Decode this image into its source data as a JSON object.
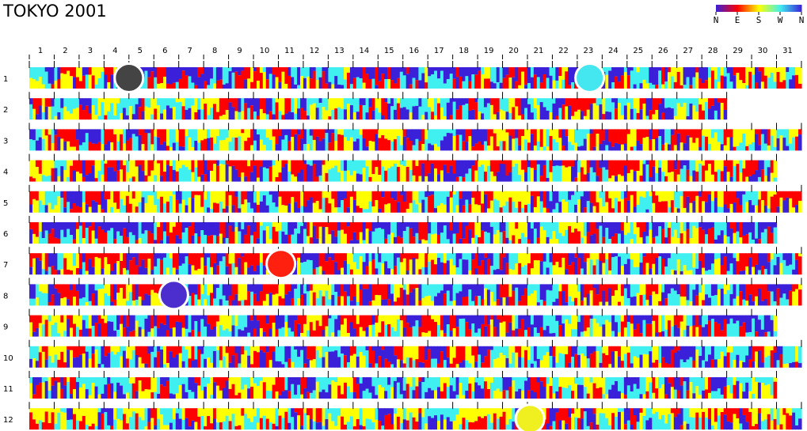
{
  "chart_data": {
    "type": "heatmap",
    "title": "TOKYO  2001",
    "subject": "wind direction",
    "x_ticks": [
      "1",
      "2",
      "3",
      "4",
      "5",
      "6",
      "7",
      "8",
      "9",
      "10",
      "11",
      "12",
      "13",
      "14",
      "15",
      "16",
      "17",
      "18",
      "19",
      "20",
      "21",
      "22",
      "23",
      "24",
      "25",
      "26",
      "27",
      "28",
      "29",
      "30",
      "31"
    ],
    "rows": [
      "1",
      "2",
      "3",
      "4",
      "5",
      "6",
      "7",
      "8",
      "9",
      "10",
      "11",
      "12"
    ],
    "days_in_month": [
      31,
      28,
      31,
      30,
      31,
      30,
      31,
      31,
      30,
      31,
      30,
      31
    ],
    "legend": {
      "labels": [
        "N",
        "E",
        "S",
        "W",
        "N"
      ],
      "colors": [
        "#3a20d8",
        "#ff0000",
        "#ffff00",
        "#40f0f0"
      ]
    },
    "direction_colors": {
      "N": "#3a20d8",
      "E": "#ff0000",
      "S": "#ffff00",
      "W": "#40f0f0"
    },
    "dominant_direction_by_month": [
      "N",
      "W",
      "E",
      "E",
      "E",
      "N",
      "E",
      "N",
      "N",
      "W",
      "W",
      "S"
    ],
    "markers": [
      {
        "month": "1",
        "day": 4.5,
        "color": "#444444"
      },
      {
        "month": "1",
        "day": 23,
        "color": "#44e6f0"
      },
      {
        "month": "7",
        "day": 10.6,
        "color": "#ff2010"
      },
      {
        "month": "8",
        "day": 6.3,
        "color": "#4b2ecd"
      },
      {
        "month": "12",
        "day": 20.6,
        "color": "#f0f020"
      }
    ]
  }
}
